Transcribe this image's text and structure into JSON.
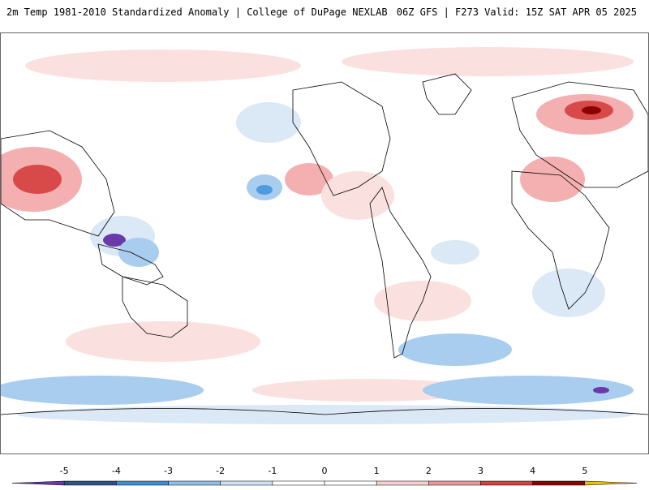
{
  "header": {
    "title": "2m Temp 1981-2010 Standardized Anomaly | College of DuPage NEXLAB",
    "run_info": "06Z GFS | F273 Valid: 15Z SAT APR 05 2025"
  },
  "colorbar": {
    "ticks": [
      "-5",
      "-4",
      "-3",
      "-2",
      "-1",
      "0",
      "1",
      "2",
      "3",
      "4",
      "5"
    ],
    "colors": [
      "#6a3aa8",
      "#2f4f8f",
      "#3f8fd6",
      "#8fbfe8",
      "#cfe0f4",
      "#ffffff",
      "#ffffff",
      "#f6cfcf",
      "#e89a9a",
      "#d44040",
      "#8b0000",
      "#f0c000"
    ]
  },
  "map": {
    "projection": "global",
    "land_outline_color": "#000000",
    "warm_colors": [
      "#fbe0e0",
      "#f4b0b0",
      "#d84a4a",
      "#8b0000"
    ],
    "cool_colors": [
      "#dbe8f6",
      "#a9cdee",
      "#4f9be0",
      "#6a3aa8"
    ]
  }
}
